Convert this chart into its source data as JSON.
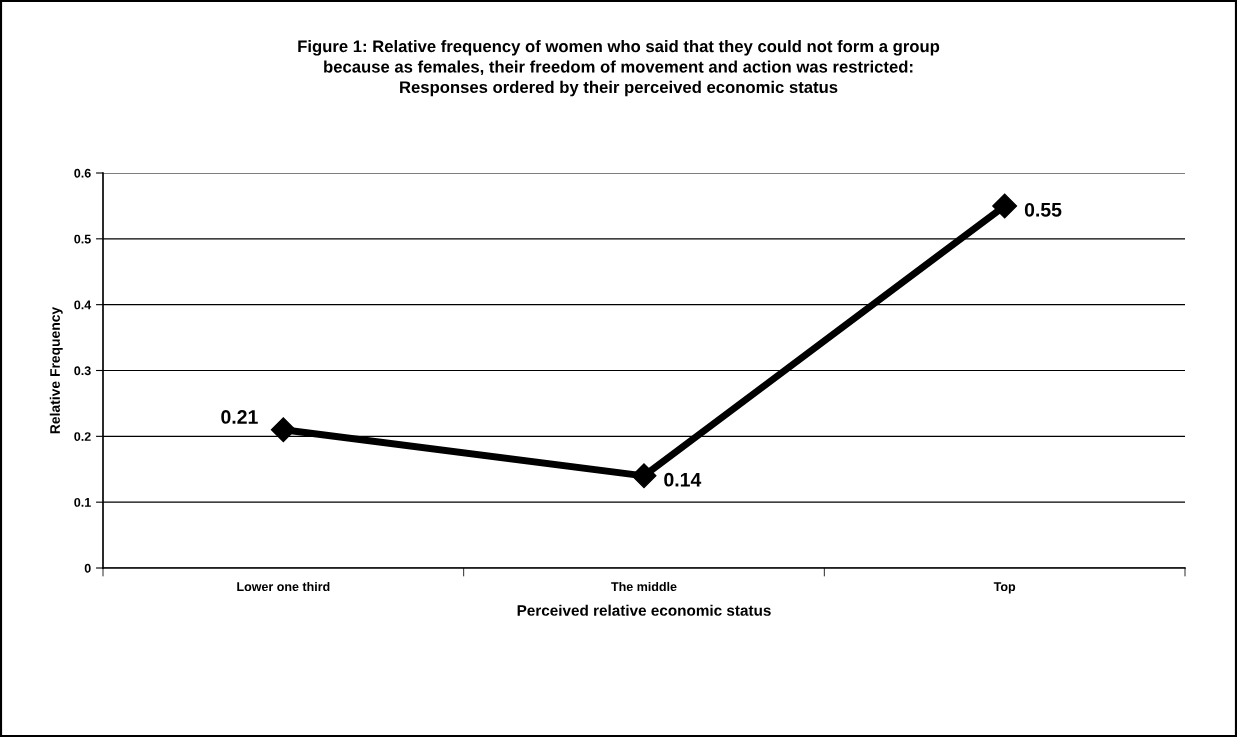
{
  "chart_data": {
    "type": "line",
    "title": "Figure 1: Relative frequency of women who said that they could not form a group\nbecause as females, their freedom of movement and action was restricted:\nResponses ordered by their perceived economic status",
    "xlabel": "Perceived relative economic status",
    "ylabel": "Relative Frequency",
    "categories": [
      "Lower one third",
      "The middle",
      "Top"
    ],
    "series": [
      {
        "color": "#000000",
        "values": [
          0.21,
          0.14,
          0.55
        ]
      }
    ],
    "ylim": [
      0,
      0.6
    ],
    "yticks": [
      0,
      0.1,
      0.2,
      0.3,
      0.4,
      0.5,
      0.6
    ],
    "grid": "y",
    "marker": "diamond",
    "line_style": "solid",
    "data_labels": true,
    "legend": false
  }
}
